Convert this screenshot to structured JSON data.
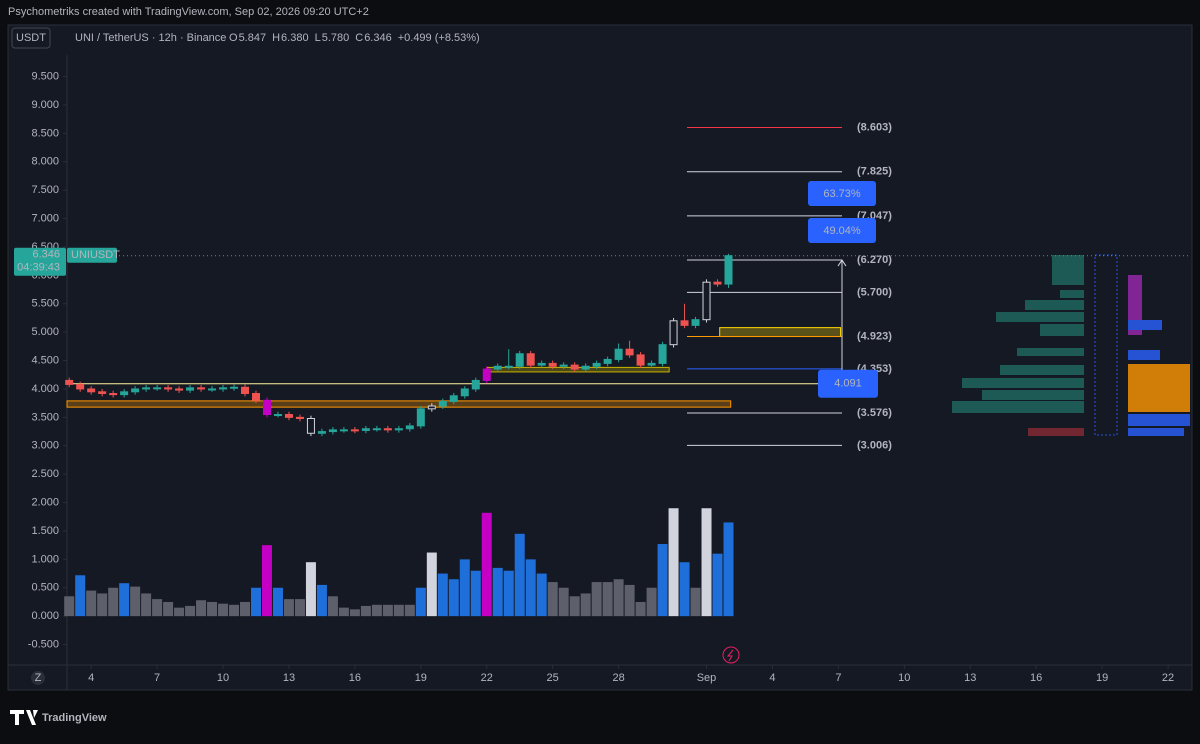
{
  "header": {
    "credit": "Psychometriks created with TradingView.com, Sep 02, 2026 09:20 UTC+2",
    "currency": "USDT",
    "symbol_line": "UNI / TetherUS · 12h · Binance",
    "ohlc": [
      {
        "label": "O",
        "value": "5.847"
      },
      {
        "label": "H",
        "value": "6.380"
      },
      {
        "label": "L",
        "value": "5.780"
      },
      {
        "label": "C",
        "value": "6.346"
      }
    ],
    "change": "+0.499 (+8.53%)"
  },
  "footer": {
    "brand": "TradingView",
    "zoom_button": "Z"
  },
  "chart_data": {
    "type": "candlestick",
    "symbol": "UNIUSDT",
    "countdown": "04:39:43",
    "x": [
      3.0,
      3.5,
      4.0,
      4.5,
      5.0,
      5.5,
      6.0,
      6.5,
      7.0,
      7.5,
      8.0,
      8.5,
      9.0,
      9.5,
      10.0,
      10.5,
      11.0,
      11.5,
      12.0,
      12.5,
      13.0,
      13.5,
      14.0,
      14.5,
      15.0,
      15.5,
      16.0,
      16.5,
      17.0,
      17.5,
      18.0,
      18.5,
      19.0,
      19.5,
      20.0,
      20.5,
      21.0,
      21.5,
      22.0,
      22.5,
      23.0,
      23.5,
      24.0,
      24.5,
      25.0,
      25.5,
      26.0,
      26.5,
      27.0,
      27.5,
      28.0,
      28.5,
      29.0,
      29.5,
      30.0,
      30.5,
      31.0,
      31.5,
      32.0,
      32.5,
      33.0
    ],
    "open": [
      4.15,
      4.08,
      4.0,
      3.95,
      3.92,
      3.9,
      3.95,
      4.0,
      4.02,
      4.02,
      4.0,
      3.98,
      4.02,
      4.0,
      4.0,
      4.02,
      4.03,
      3.92,
      3.8,
      3.55,
      3.55,
      3.5,
      3.48,
      3.22,
      3.25,
      3.28,
      3.28,
      3.27,
      3.3,
      3.3,
      3.28,
      3.3,
      3.35,
      3.65,
      3.7,
      3.78,
      3.88,
      4.0,
      4.15,
      4.35,
      4.4,
      4.4,
      4.62,
      4.42,
      4.45,
      4.4,
      4.42,
      4.35,
      4.4,
      4.45,
      4.52,
      4.7,
      4.6,
      4.42,
      4.45,
      4.78,
      5.2,
      5.12,
      5.22,
      5.88,
      5.847
    ],
    "high": [
      4.2,
      4.13,
      4.05,
      4.0,
      3.97,
      4.0,
      4.05,
      4.07,
      4.07,
      4.07,
      4.05,
      4.07,
      4.07,
      4.05,
      4.07,
      4.08,
      4.08,
      3.97,
      3.85,
      3.6,
      3.6,
      3.55,
      3.53,
      3.3,
      3.33,
      3.33,
      3.33,
      3.35,
      3.35,
      3.35,
      3.35,
      3.4,
      3.7,
      3.75,
      3.83,
      3.93,
      4.05,
      4.2,
      4.4,
      4.45,
      4.7,
      4.67,
      4.67,
      4.5,
      4.5,
      4.47,
      4.47,
      4.45,
      4.5,
      4.57,
      4.8,
      4.85,
      4.65,
      4.5,
      4.83,
      5.25,
      5.5,
      5.27,
      5.93,
      5.93,
      6.38
    ],
    "low": [
      4.03,
      3.95,
      3.9,
      3.87,
      3.85,
      3.85,
      3.9,
      3.95,
      3.97,
      3.95,
      3.93,
      3.93,
      3.95,
      3.95,
      3.95,
      3.97,
      3.87,
      3.75,
      3.5,
      3.5,
      3.45,
      3.43,
      3.17,
      3.17,
      3.2,
      3.23,
      3.22,
      3.22,
      3.25,
      3.23,
      3.23,
      3.25,
      3.3,
      3.6,
      3.65,
      3.73,
      3.83,
      3.95,
      4.1,
      4.3,
      4.35,
      4.35,
      4.37,
      4.37,
      4.35,
      4.35,
      4.3,
      4.3,
      4.35,
      4.4,
      4.47,
      4.55,
      4.37,
      4.37,
      4.4,
      4.73,
      5.07,
      5.07,
      5.17,
      5.8,
      5.78
    ],
    "close": [
      4.08,
      4.0,
      3.95,
      3.92,
      3.9,
      3.95,
      4.0,
      4.02,
      4.02,
      4.0,
      3.98,
      4.02,
      4.0,
      4.0,
      4.02,
      4.03,
      3.92,
      3.8,
      3.55,
      3.55,
      3.5,
      3.48,
      3.22,
      3.25,
      3.28,
      3.28,
      3.27,
      3.3,
      3.3,
      3.28,
      3.3,
      3.35,
      3.65,
      3.7,
      3.78,
      3.88,
      4.0,
      4.15,
      4.35,
      4.4,
      4.4,
      4.62,
      4.42,
      4.45,
      4.4,
      4.42,
      4.35,
      4.4,
      4.45,
      4.52,
      4.7,
      4.6,
      4.42,
      4.45,
      4.78,
      5.2,
      5.12,
      5.22,
      5.88,
      5.847,
      6.346
    ],
    "up_color": "#26a69a",
    "down_color": "#ef5350",
    "volume": {
      "values": [
        0.35,
        0.72,
        0.45,
        0.4,
        0.5,
        0.58,
        0.52,
        0.4,
        0.3,
        0.25,
        0.15,
        0.18,
        0.28,
        0.25,
        0.22,
        0.2,
        0.25,
        0.5,
        1.25,
        0.5,
        0.3,
        0.3,
        0.95,
        0.55,
        0.35,
        0.15,
        0.12,
        0.18,
        0.2,
        0.2,
        0.2,
        0.2,
        0.5,
        1.12,
        0.75,
        0.65,
        1.0,
        0.8,
        1.82,
        0.85,
        0.8,
        1.45,
        1.0,
        0.75,
        0.6,
        0.5,
        0.35,
        0.4,
        0.6,
        0.6,
        0.65,
        0.55,
        0.25,
        0.5,
        1.27,
        1.9,
        0.95,
        0.5,
        1.9,
        1.1,
        1.65
      ],
      "colors": [
        "#5d606b",
        "#1e6fd9",
        "#5d606b",
        "#5d606b",
        "#5d606b",
        "#1e6fd9",
        "#5d606b",
        "#5d606b",
        "#5d606b",
        "#5d606b",
        "#5d606b",
        "#5d606b",
        "#5d606b",
        "#5d606b",
        "#5d606b",
        "#5d606b",
        "#5d606b",
        "#1e6fd9",
        "#c300c3",
        "#1e6fd9",
        "#5d606b",
        "#5d606b",
        "#d1d4dc",
        "#1e6fd9",
        "#5d606b",
        "#5d606b",
        "#5d606b",
        "#5d606b",
        "#5d606b",
        "#5d606b",
        "#5d606b",
        "#5d606b",
        "#1e6fd9",
        "#d1d4dc",
        "#1e6fd9",
        "#1e6fd9",
        "#1e6fd9",
        "#1e6fd9",
        "#c300c3",
        "#1e6fd9",
        "#1e6fd9",
        "#1e6fd9",
        "#1e6fd9",
        "#1e6fd9",
        "#5d606b",
        "#5d606b",
        "#5d606b",
        "#5d606b",
        "#5d606b",
        "#5d606b",
        "#5d606b",
        "#5d606b",
        "#5d606b",
        "#5d606b",
        "#1e6fd9",
        "#d1d4dc",
        "#1e6fd9",
        "#5d606b",
        "#d1d4dc",
        "#1e6fd9",
        "#1e6fd9"
      ]
    },
    "fib_levels": [
      {
        "value": 8.603,
        "label": "(8.603)",
        "color": "#f23645"
      },
      {
        "value": 7.825,
        "label": "(7.825)",
        "color": "#d1d4dc"
      },
      {
        "value": 7.047,
        "label": "(7.047)",
        "color": "#d1d4dc"
      },
      {
        "value": 6.27,
        "label": "(6.270)",
        "color": "#d1d4dc"
      },
      {
        "value": 5.7,
        "label": "(5.700)",
        "color": "#d1d4dc"
      },
      {
        "value": 4.923,
        "label": "(4.923)",
        "color": "#ff9800"
      },
      {
        "value": 4.353,
        "label": "(4.353)",
        "color": "#2962ff"
      },
      {
        "value": 3.576,
        "label": "(3.576)",
        "color": "#d1d4dc"
      },
      {
        "value": 3.006,
        "label": "(3.006)",
        "color": "#d1d4dc"
      }
    ],
    "targets": [
      "63.73%",
      "49.04%"
    ],
    "level": 4.091,
    "zones": [
      {
        "low": 3.68,
        "high": 3.79,
        "from": 2.9,
        "to": 33.1,
        "color": "#ff9800"
      },
      {
        "low": 4.3,
        "high": 4.38,
        "from": 22.0,
        "to": 30.3,
        "color": "#c8b400"
      },
      {
        "low": 4.923,
        "high": 5.08,
        "from": 32.6,
        "to": 38.1,
        "color": "#ffd600"
      }
    ],
    "xlim": [
      2.9,
      54.0
    ],
    "xticks": [
      4,
      7,
      10,
      13,
      16,
      19,
      22,
      25,
      28,
      {
        "value": 32,
        "label": "Sep"
      },
      {
        "value": 35,
        "label": "4"
      },
      {
        "value": 38,
        "label": "7"
      },
      {
        "value": 41,
        "label": "10"
      },
      {
        "value": 44,
        "label": "13"
      },
      {
        "value": 47,
        "label": "16"
      },
      {
        "value": 50,
        "label": "19"
      },
      {
        "value": 53,
        "label": "22"
      }
    ],
    "ylim": [
      -0.86,
      9.88
    ],
    "yticks": [
      {
        "value": -0.5,
        "label": "-0.500"
      },
      {
        "value": 0,
        "label": "0.000"
      },
      {
        "value": 0.5,
        "label": "0.500"
      },
      {
        "value": 1,
        "label": "1.000"
      },
      {
        "value": 1.5,
        "label": "1.500"
      },
      {
        "value": 2,
        "label": "2.000"
      },
      {
        "value": 2.5,
        "label": "2.500"
      },
      {
        "value": 3,
        "label": "3.000"
      },
      {
        "value": 3.5,
        "label": "3.500"
      },
      {
        "value": 4,
        "label": "4.000"
      },
      {
        "value": 4.5,
        "label": "4.500"
      },
      {
        "value": 5,
        "label": "5.000"
      },
      {
        "value": 5.5,
        "label": "5.500"
      },
      {
        "value": 6,
        "label": "6.000"
      },
      {
        "value": 6.5,
        "label": "6.500"
      },
      {
        "value": 7,
        "label": "7.000"
      },
      {
        "value": 7.5,
        "label": "7.500"
      },
      {
        "value": 8,
        "label": "8.000"
      },
      {
        "value": 8.5,
        "label": "8.500"
      },
      {
        "value": 9,
        "label": "9.000"
      },
      {
        "value": 9.5,
        "label": "9.500"
      }
    ]
  }
}
